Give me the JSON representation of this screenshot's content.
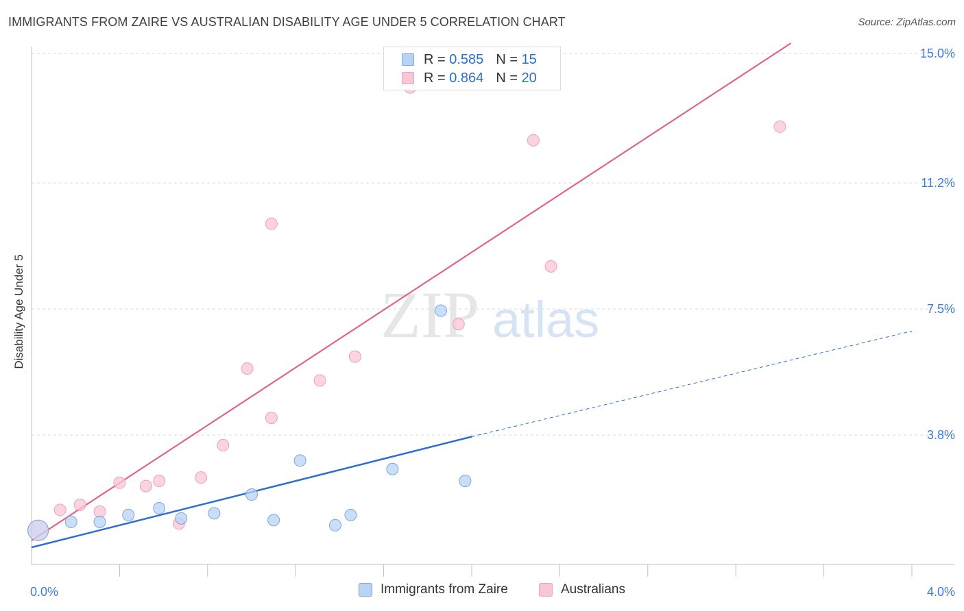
{
  "title": "IMMIGRANTS FROM ZAIRE VS AUSTRALIAN DISABILITY AGE UNDER 5 CORRELATION CHART",
  "source": "Source: ZipAtlas.com",
  "watermark": {
    "zip": "ZIP",
    "atlas": "atlas"
  },
  "legend": {
    "rows": [
      {
        "r_label": "R = ",
        "r_value": "0.585",
        "n_label": "N = ",
        "n_value": "15"
      },
      {
        "r_label": "R = ",
        "r_value": "0.864",
        "n_label": "N = ",
        "n_value": "20"
      }
    ]
  },
  "colors": {
    "blue_fill": "#b9d3f5",
    "blue_stroke": "#7aa6de",
    "blue_line": "#2a6fd1",
    "pink_fill": "#f9c6d6",
    "pink_stroke": "#eda0b8",
    "pink_line": "#e0638b",
    "grid": "#d9d9d9",
    "tick_text": "#3d7bd6"
  },
  "chart_data": {
    "type": "scatter",
    "title": "IMMIGRANTS FROM ZAIRE VS AUSTRALIAN DISABILITY AGE UNDER 5 CORRELATION CHART",
    "xlabel": "",
    "ylabel": "Disability Age Under 5",
    "xlim": [
      0.0,
      4.0
    ],
    "ylim": [
      0.0,
      15.0
    ],
    "x_tick_labels": [
      "0.0%",
      "4.0%"
    ],
    "y_ticks": [
      3.8,
      7.5,
      11.2,
      15.0
    ],
    "y_tick_labels": [
      "3.8%",
      "7.5%",
      "11.2%",
      "15.0%"
    ],
    "series": [
      {
        "name": "Immigrants from Zaire",
        "color": "blue",
        "points": [
          [
            0.03,
            1.0
          ],
          [
            0.18,
            1.25
          ],
          [
            0.31,
            1.25
          ],
          [
            0.44,
            1.45
          ],
          [
            0.58,
            1.65
          ],
          [
            0.68,
            1.35
          ],
          [
            0.83,
            1.5
          ],
          [
            1.0,
            2.05
          ],
          [
            1.1,
            1.3
          ],
          [
            1.22,
            3.05
          ],
          [
            1.38,
            1.15
          ],
          [
            1.45,
            1.45
          ],
          [
            1.64,
            2.8
          ],
          [
            1.86,
            7.45
          ],
          [
            1.97,
            2.45
          ]
        ],
        "trend": {
          "x0": 0.0,
          "y0": 0.5,
          "x1": 2.0,
          "y1": 3.75,
          "dashed_to_x": 4.0,
          "dashed_to_y": 6.85
        }
      },
      {
        "name": "Australians",
        "color": "pink",
        "points": [
          [
            0.03,
            1.0
          ],
          [
            0.13,
            1.6
          ],
          [
            0.22,
            1.75
          ],
          [
            0.31,
            1.55
          ],
          [
            0.4,
            2.4
          ],
          [
            0.52,
            2.3
          ],
          [
            0.58,
            2.45
          ],
          [
            0.67,
            1.2
          ],
          [
            0.77,
            2.55
          ],
          [
            0.87,
            3.5
          ],
          [
            0.98,
            5.75
          ],
          [
            1.09,
            4.3
          ],
          [
            1.09,
            10.0
          ],
          [
            1.31,
            5.4
          ],
          [
            1.47,
            6.1
          ],
          [
            1.72,
            14.0
          ],
          [
            1.94,
            7.05
          ],
          [
            2.28,
            12.45
          ],
          [
            2.36,
            8.75
          ],
          [
            3.4,
            12.85
          ]
        ],
        "trend": {
          "x0": 0.0,
          "y0": 0.7,
          "x1": 3.45,
          "y1": 15.3
        }
      }
    ]
  }
}
